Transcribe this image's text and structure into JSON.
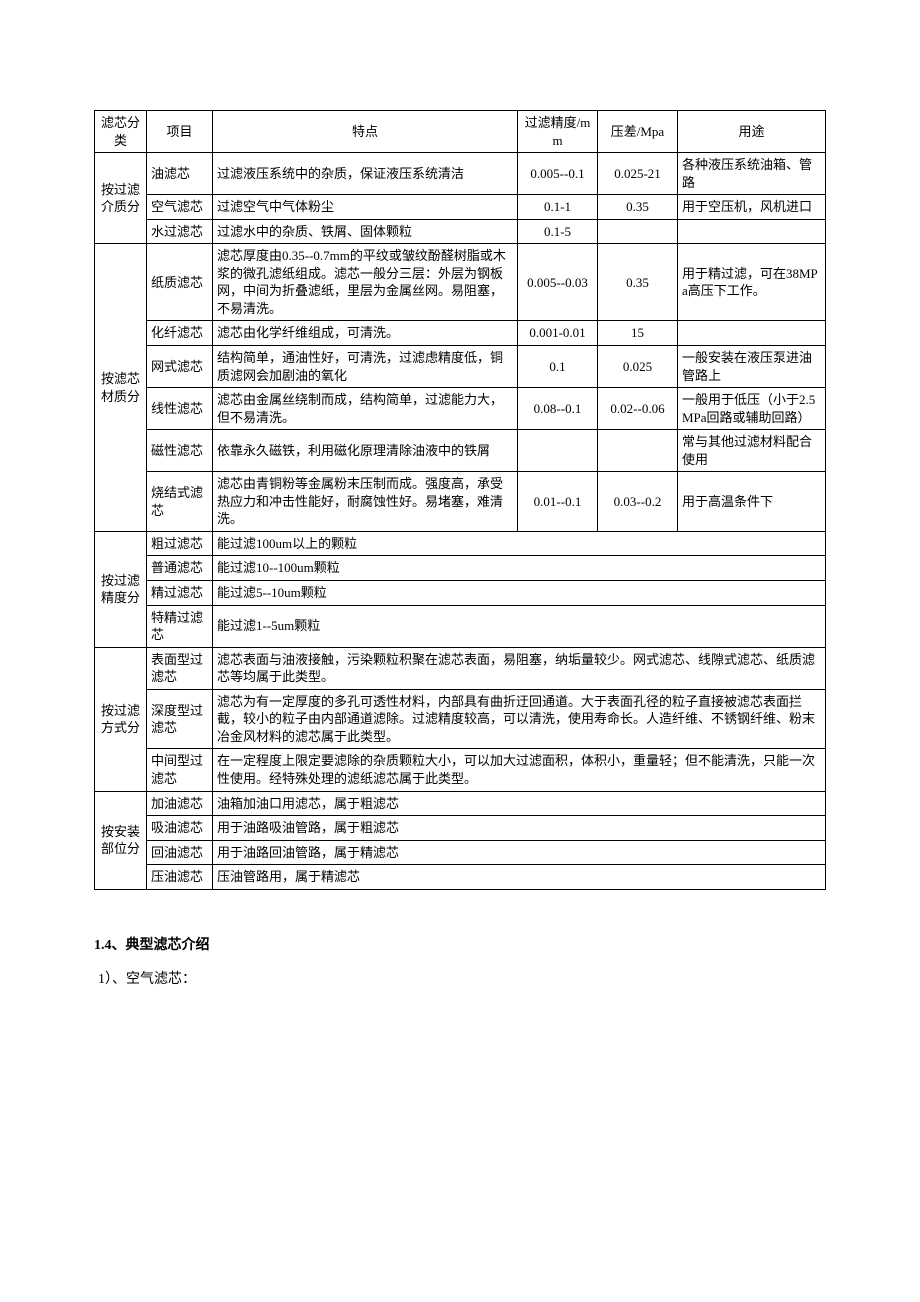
{
  "table": {
    "headers": {
      "category": "滤芯分类",
      "item": "项目",
      "feature": "特点",
      "precision": "过滤精度/mm",
      "pressure": "压差/Mpa",
      "usage": "用途"
    },
    "groups": [
      {
        "category": "按过滤介质分",
        "rows": [
          {
            "item": "油滤芯",
            "feature": "过滤液压系统中的杂质，保证液压系统清洁",
            "precision": "0.005--0.1",
            "pressure": "0.025-21",
            "usage": "各种液压系统油箱、管路"
          },
          {
            "item": "空气滤芯",
            "feature": "过滤空气中气体粉尘",
            "precision": "0.1-1",
            "pressure": "0.35",
            "usage": "用于空压机，风机进口"
          },
          {
            "item": "水过滤芯",
            "feature": "过滤水中的杂质、铁屑、固体颗粒",
            "precision": "0.1-5",
            "pressure": "",
            "usage": ""
          }
        ]
      },
      {
        "category": "按滤芯材质分",
        "rows": [
          {
            "item": "纸质滤芯",
            "feature": "滤芯厚度由0.35--0.7mm的平纹或皱纹酚醛树脂或木浆的微孔滤纸组成。滤芯一般分三层：外层为钢板网，中间为折叠滤纸，里层为金属丝网。易阻塞，不易清洗。",
            "precision": "0.005--0.03",
            "pressure": "0.35",
            "usage": "用于精过滤，可在38MPa高压下工作。"
          },
          {
            "item": "化纤滤芯",
            "feature": "滤芯由化学纤维组成，可清洗。",
            "precision": "0.001-0.01",
            "pressure": "15",
            "usage": ""
          },
          {
            "item": "网式滤芯",
            "feature": "结构简单，通油性好，可清洗，过滤虑精度低，铜质滤网会加剧油的氧化",
            "precision": "0.1",
            "pressure": "0.025",
            "usage": "一般安装在液压泵进油管路上"
          },
          {
            "item": "线性滤芯",
            "feature": "滤芯由金属丝绕制而成，结构简单，过滤能力大，但不易清洗。",
            "precision": "0.08--0.1",
            "pressure": "0.02--0.06",
            "usage": "一般用于低压（小于2.5MPa回路或辅助回路）"
          },
          {
            "item": "磁性滤芯",
            "feature": "依靠永久磁铁，利用磁化原理清除油液中的铁屑",
            "precision": "",
            "pressure": "",
            "usage": "常与其他过滤材料配合使用"
          },
          {
            "item": "烧结式滤芯",
            "feature": "滤芯由青铜粉等金属粉末压制而成。强度高，承受热应力和冲击性能好，耐腐蚀性好。易堵塞，难清洗。",
            "precision": "0.01--0.1",
            "pressure": "0.03--0.2",
            "usage": "用于高温条件下"
          }
        ]
      },
      {
        "category": "按过滤精度分",
        "wide": true,
        "rows": [
          {
            "item": "粗过滤芯",
            "feature": "能过滤100um以上的颗粒"
          },
          {
            "item": "普通滤芯",
            "feature": "能过滤10--100um颗粒"
          },
          {
            "item": "精过滤芯",
            "feature": "能过滤5--10um颗粒"
          },
          {
            "item": "特精过滤芯",
            "feature": "能过滤1--5um颗粒"
          }
        ]
      },
      {
        "category": "按过滤方式分",
        "wide": true,
        "rows": [
          {
            "item": "表面型过滤芯",
            "feature": "滤芯表面与油液接触，污染颗粒积聚在滤芯表面，易阻塞，纳垢量较少。网式滤芯、线隙式滤芯、纸质滤芯等均属于此类型。"
          },
          {
            "item": "深度型过滤芯",
            "feature": "滤芯为有一定厚度的多孔可透性材料，内部具有曲折迂回通道。大于表面孔径的粒子直接被滤芯表面拦截，较小的粒子由内部通道滤除。过滤精度较高，可以清洗，使用寿命长。人造纤维、不锈钢纤维、粉末冶金风材料的滤芯属于此类型。"
          },
          {
            "item": "中间型过滤芯",
            "feature": "在一定程度上限定要滤除的杂质颗粒大小，可以加大过滤面积，体积小，重量轻；但不能清洗，只能一次性使用。经特殊处理的滤纸滤芯属于此类型。"
          }
        ]
      },
      {
        "category": "按安装部位分",
        "wide": true,
        "rows": [
          {
            "item": "加油滤芯",
            "feature": "油箱加油口用滤芯，属于粗滤芯"
          },
          {
            "item": "吸油滤芯",
            "feature": "用于油路吸油管路，属于粗滤芯"
          },
          {
            "item": "回油滤芯",
            "feature": "用于油路回油管路，属于精滤芯"
          },
          {
            "item": "压油滤芯",
            "feature": "压油管路用，属于精滤芯"
          }
        ]
      }
    ]
  },
  "section": {
    "title": "1.4、典型滤芯介绍",
    "line1": "1）、空气滤芯："
  },
  "style": {
    "font_body": 13,
    "font_section": 14,
    "border_color": "#000000",
    "background": "#ffffff",
    "text_color": "#000000"
  }
}
